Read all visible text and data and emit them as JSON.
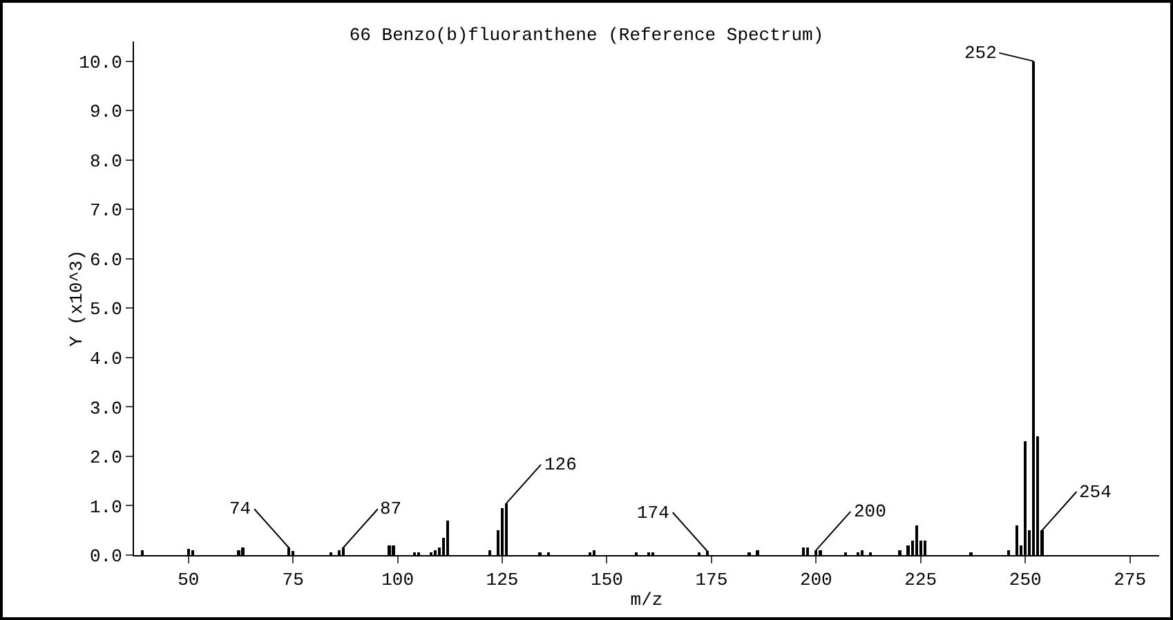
{
  "chart_data": {
    "type": "bar",
    "title": "66 Benzo(b)fluoranthene (Reference Spectrum)",
    "xlabel": "m/z",
    "ylabel": "Y (x10^3)",
    "x": [
      39,
      50,
      51,
      62,
      63,
      74,
      75,
      84,
      86,
      87,
      98,
      99,
      104,
      105,
      108,
      109,
      110,
      111,
      112,
      122,
      124,
      125,
      126,
      134,
      136,
      146,
      147,
      157,
      160,
      161,
      172,
      174,
      184,
      186,
      197,
      198,
      200,
      201,
      207,
      210,
      211,
      213,
      220,
      222,
      223,
      224,
      225,
      226,
      237,
      246,
      248,
      249,
      250,
      251,
      252,
      253,
      254
    ],
    "values": [
      0.1,
      0.12,
      0.1,
      0.1,
      0.15,
      0.15,
      0.08,
      0.05,
      0.1,
      0.15,
      0.2,
      0.2,
      0.05,
      0.05,
      0.05,
      0.1,
      0.15,
      0.35,
      0.7,
      0.1,
      0.5,
      0.95,
      1.05,
      0.05,
      0.05,
      0.05,
      0.1,
      0.05,
      0.05,
      0.05,
      0.05,
      0.08,
      0.05,
      0.1,
      0.15,
      0.15,
      0.1,
      0.1,
      0.05,
      0.05,
      0.1,
      0.05,
      0.1,
      0.2,
      0.3,
      0.6,
      0.3,
      0.3,
      0.05,
      0.1,
      0.6,
      0.2,
      2.3,
      0.5,
      10.0,
      2.4,
      0.5
    ],
    "color": "#000000",
    "xlim": [
      37,
      282
    ],
    "xticks": [
      50,
      75,
      100,
      125,
      150,
      175,
      200,
      225,
      250,
      275
    ],
    "ylim": [
      0,
      10.4
    ],
    "yticks": [
      {
        "value": 0,
        "label": "0.0"
      },
      {
        "value": 1,
        "label": "1.0"
      },
      {
        "value": 2,
        "label": "2.0"
      },
      {
        "value": 3,
        "label": "3.0"
      },
      {
        "value": 4,
        "label": "4.0"
      },
      {
        "value": 5,
        "label": "5.0"
      },
      {
        "value": 6,
        "label": "6.0"
      },
      {
        "value": 7,
        "label": "7.0"
      },
      {
        "value": 8,
        "label": "8.0"
      },
      {
        "value": 9,
        "label": "9.0"
      },
      {
        "value": 10,
        "label": "10.0"
      }
    ],
    "grid": false,
    "annotations": [
      {
        "text": "74",
        "x": 74,
        "y": 0.15
      },
      {
        "text": "87",
        "x": 87,
        "y": 0.15
      },
      {
        "text": "126",
        "x": 126,
        "y": 1.05
      },
      {
        "text": "174",
        "x": 174,
        "y": 0.08
      },
      {
        "text": "200",
        "x": 200,
        "y": 0.1
      },
      {
        "text": "252",
        "x": 252,
        "y": 10.0
      },
      {
        "text": "254",
        "x": 254,
        "y": 0.5
      }
    ]
  }
}
